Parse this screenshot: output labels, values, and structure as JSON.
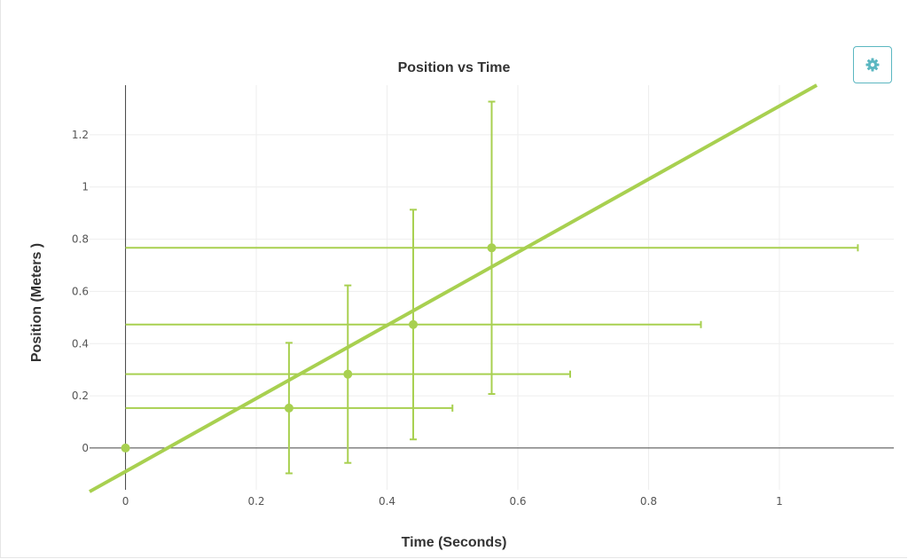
{
  "colors": {
    "series": "#a8d050",
    "fit": "#a8d050",
    "accent": "#5bb7c1"
  },
  "settings": {
    "icon": "gear-icon"
  },
  "chart_data": {
    "type": "scatter",
    "title": "Position vs Time",
    "xlabel": "Time (Seconds)",
    "ylabel": "Position (Meters )",
    "xlim": [
      -0.055,
      1.175
    ],
    "ylim": [
      -0.16,
      1.39
    ],
    "xticks": [
      0,
      0.2,
      0.4,
      0.6,
      0.8,
      1
    ],
    "xtick_labels": [
      "0",
      "0.2",
      "0.4",
      "0.6",
      "0.8",
      "1"
    ],
    "yticks": [
      0,
      0.2,
      0.4,
      0.6,
      0.8,
      1,
      1.2
    ],
    "ytick_labels": [
      "0",
      "0.2",
      "0.4",
      "0.6",
      "0.8",
      "1",
      "1.2"
    ],
    "grid": true,
    "series": [
      {
        "points": [
          {
            "x": 0,
            "y": 0
          },
          {
            "x": 0.25,
            "y": 0.153,
            "x_err": [
              0.25,
              0.25
            ],
            "y_err": [
              0.25,
              0.25
            ]
          },
          {
            "x": 0.34,
            "y": 0.283,
            "x_err": [
              0.34,
              0.34
            ],
            "y_err": [
              0.34,
              0.34
            ]
          },
          {
            "x": 0.44,
            "y": 0.473,
            "x_err": [
              0.44,
              0.44
            ],
            "y_err": [
              0.44,
              0.44
            ]
          },
          {
            "x": 0.56,
            "y": 0.767,
            "x_err": [
              0.56,
              0.56
            ],
            "y_err": [
              0.56,
              0.56
            ]
          }
        ]
      }
    ],
    "fit_line": {
      "slope": 1.4,
      "intercept": -0.09
    }
  }
}
